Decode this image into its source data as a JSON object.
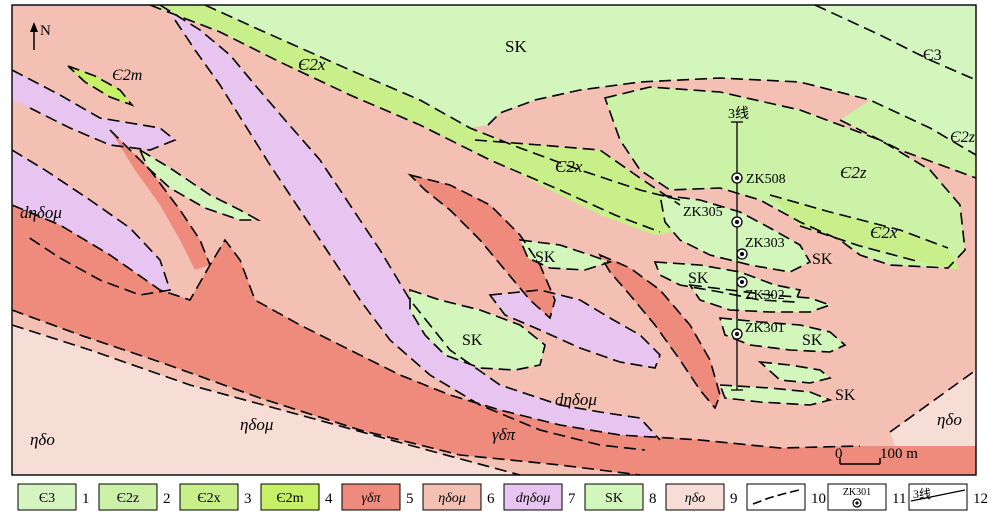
{
  "north_arrow": {
    "label": "N"
  },
  "colors": {
    "e3": "#d4f5c0",
    "e2z": "#ccf2a8",
    "e2x": "#c8ef8a",
    "e2m": "#c6f066",
    "gamma_delta_pi": "#ee8b7c",
    "eta_delta_o_mu": "#f4c0b3",
    "d_eta_delta_o_mu": "#e7c5f0",
    "sk": "#d3f6bc",
    "eta_delta_o": "#f6ddd6"
  },
  "map_labels": {
    "sk_top": "SK",
    "e3_top": "Є3",
    "e2z_right": "Є2z",
    "e2m_top_left": "Є2m",
    "e2x_top": "Є2x",
    "e2x_mid": "Є2x",
    "e2z_center": "Є2z",
    "e2x_right": "Є2x",
    "sk_right_1": "SK",
    "sk_right_2": "SK",
    "sk_right_3": "SK",
    "sk_bottom_right": "SK",
    "sk_mid_1": "SK",
    "sk_mid_2": "SK",
    "sk_center": "SK",
    "d_eta_delta_o_mu_left": "dηδoμ",
    "d_eta_delta_o_mu_bottom": "dηδoμ",
    "eta_delta_o_mu_bottom": "ηδoμ",
    "eta_delta_o_left": "ηδo",
    "eta_delta_o_right": "ηδo",
    "gamma_delta_pi_bottom": "γδπ",
    "section_line": "3线",
    "boreholes": [
      "ZK508",
      "ZK305",
      "ZK303",
      "ZK302",
      "ZK301"
    ],
    "scale_zero": "0",
    "scale_end": "100 m"
  },
  "legend": [
    {
      "num": "1",
      "label": "Є3",
      "type": "swatch",
      "color_key": "e3",
      "italic": false
    },
    {
      "num": "2",
      "label": "Є2z",
      "type": "swatch",
      "color_key": "e2z",
      "italic": false
    },
    {
      "num": "3",
      "label": "Є2x",
      "type": "swatch",
      "color_key": "e2x",
      "italic": false
    },
    {
      "num": "4",
      "label": "Є2m",
      "type": "swatch",
      "color_key": "e2m",
      "italic": false
    },
    {
      "num": "5",
      "label": "γδπ",
      "type": "swatch",
      "color_key": "gamma_delta_pi",
      "italic": true
    },
    {
      "num": "6",
      "label": "ηδoμ",
      "type": "swatch",
      "color_key": "eta_delta_o_mu",
      "italic": true
    },
    {
      "num": "7",
      "label": "dηδoμ",
      "type": "swatch",
      "color_key": "d_eta_delta_o_mu",
      "italic": true
    },
    {
      "num": "8",
      "label": "SK",
      "type": "swatch",
      "color_key": "sk",
      "italic": false
    },
    {
      "num": "9",
      "label": "ηδo",
      "type": "swatch",
      "color_key": "eta_delta_o",
      "italic": true
    },
    {
      "num": "10",
      "label": "",
      "type": "boundary",
      "color_key": "",
      "italic": false
    },
    {
      "num": "11",
      "label": "ZK301",
      "type": "borehole",
      "color_key": "",
      "italic": false
    },
    {
      "num": "12",
      "label": "3线",
      "type": "section",
      "color_key": "",
      "italic": false
    }
  ]
}
